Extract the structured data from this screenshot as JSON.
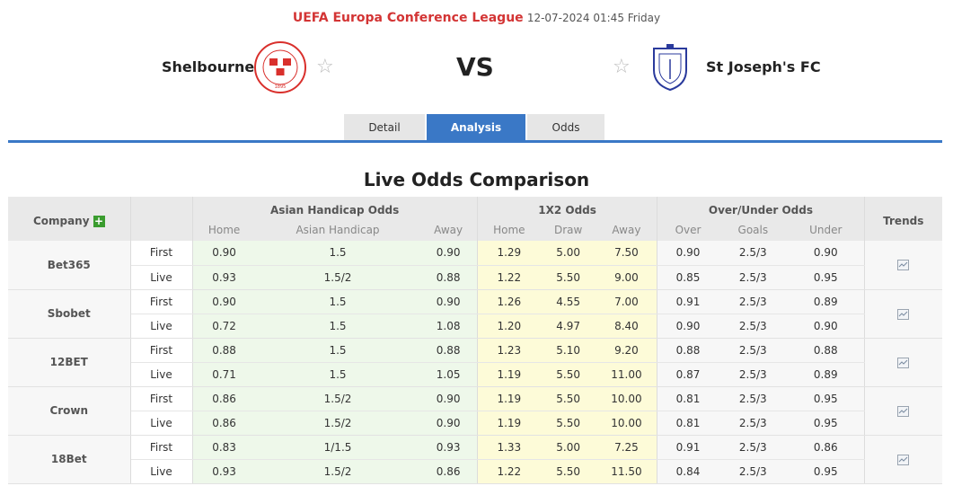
{
  "header": {
    "league": "UEFA Europa Conference League",
    "datetime": "12-07-2024 01:45 Friday",
    "home_team": "Shelbourne",
    "away_team": "St Joseph's FC",
    "vs": "VS"
  },
  "tabs": [
    {
      "label": "Detail",
      "active": false
    },
    {
      "label": "Analysis",
      "active": true
    },
    {
      "label": "Odds",
      "active": false
    }
  ],
  "section_title": "Live Odds Comparison",
  "table": {
    "headers": {
      "company": "Company",
      "asian_handicap": "Asian Handicap Odds",
      "x12": "1X2 Odds",
      "over_under": "Over/Under Odds",
      "trends": "Trends",
      "ah_sub": [
        "Home",
        "Asian Handicap",
        "Away"
      ],
      "x12_sub": [
        "Home",
        "Draw",
        "Away"
      ],
      "ou_sub": [
        "Over",
        "Goals",
        "Under"
      ]
    },
    "companies": [
      {
        "name": "Bet365",
        "first": {
          "type": "First",
          "ah": [
            "0.90",
            "1.5",
            "0.90"
          ],
          "x12": [
            "1.29",
            "5.00",
            "7.50"
          ],
          "ou": [
            "0.90",
            "2.5/3",
            "0.90"
          ]
        },
        "live": {
          "type": "Live",
          "ah": [
            "0.93",
            "1.5/2",
            "0.88"
          ],
          "x12": [
            "1.22",
            "5.50",
            "9.00"
          ],
          "ou": [
            "0.85",
            "2.5/3",
            "0.95"
          ]
        }
      },
      {
        "name": "Sbobet",
        "first": {
          "type": "First",
          "ah": [
            "0.90",
            "1.5",
            "0.90"
          ],
          "x12": [
            "1.26",
            "4.55",
            "7.00"
          ],
          "ou": [
            "0.91",
            "2.5/3",
            "0.89"
          ]
        },
        "live": {
          "type": "Live",
          "ah": [
            "0.72",
            "1.5",
            "1.08"
          ],
          "x12": [
            "1.20",
            "4.97",
            "8.40"
          ],
          "ou": [
            "0.90",
            "2.5/3",
            "0.90"
          ]
        }
      },
      {
        "name": "12BET",
        "first": {
          "type": "First",
          "ah": [
            "0.88",
            "1.5",
            "0.88"
          ],
          "x12": [
            "1.23",
            "5.10",
            "9.20"
          ],
          "ou": [
            "0.88",
            "2.5/3",
            "0.88"
          ]
        },
        "live": {
          "type": "Live",
          "ah": [
            "0.71",
            "1.5",
            "1.05"
          ],
          "x12": [
            "1.19",
            "5.50",
            "11.00"
          ],
          "ou": [
            "0.87",
            "2.5/3",
            "0.89"
          ]
        }
      },
      {
        "name": "Crown",
        "first": {
          "type": "First",
          "ah": [
            "0.86",
            "1.5/2",
            "0.90"
          ],
          "x12": [
            "1.19",
            "5.50",
            "10.00"
          ],
          "ou": [
            "0.81",
            "2.5/3",
            "0.95"
          ]
        },
        "live": {
          "type": "Live",
          "ah": [
            "0.86",
            "1.5/2",
            "0.90"
          ],
          "x12": [
            "1.19",
            "5.50",
            "10.00"
          ],
          "ou": [
            "0.81",
            "2.5/3",
            "0.95"
          ]
        }
      },
      {
        "name": "18Bet",
        "first": {
          "type": "First",
          "ah": [
            "0.83",
            "1/1.5",
            "0.93"
          ],
          "x12": [
            "1.33",
            "5.00",
            "7.25"
          ],
          "ou": [
            "0.91",
            "2.5/3",
            "0.86"
          ]
        },
        "live": {
          "type": "Live",
          "ah": [
            "0.93",
            "1.5/2",
            "0.86"
          ],
          "x12": [
            "1.22",
            "5.50",
            "11.50"
          ],
          "ou": [
            "0.84",
            "2.5/3",
            "0.95"
          ]
        }
      }
    ]
  },
  "colors": {
    "league_red": "#d33434",
    "tab_active_blue": "#3a78c6",
    "ah_bg": "#eef8ea",
    "x12_bg": "#fdfbd8",
    "plus_green": "#3a9c2e"
  }
}
